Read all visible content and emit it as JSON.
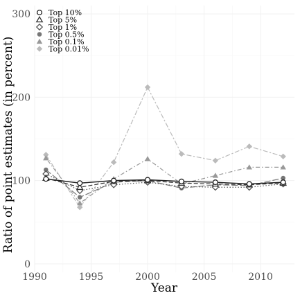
{
  "chart_data": {
    "type": "line",
    "title": "",
    "xlabel": "Year",
    "ylabel": "Ratio of point estimates (in percent)",
    "xlim": [
      1990,
      2013
    ],
    "ylim": [
      -10,
      310
    ],
    "x_ticks": [
      1990,
      1995,
      2000,
      2005,
      2010
    ],
    "y_ticks": [
      0,
      100,
      200,
      300
    ],
    "x": [
      1991,
      1994,
      1997,
      2000,
      2003,
      2006,
      2009,
      2012
    ],
    "grid": true,
    "legend_position": "top-left",
    "series": [
      {
        "name": "Top 10%",
        "values": [
          102,
          97,
          100,
          101,
          99,
          98,
          96,
          98
        ],
        "marker": "circle-open",
        "color": "#222222",
        "dash": "solid"
      },
      {
        "name": "Top 5%",
        "values": [
          103,
          92,
          99,
          100,
          97,
          96,
          95,
          97
        ],
        "marker": "triangle-open",
        "color": "#333333",
        "dash": "dashed"
      },
      {
        "name": "Top 1%",
        "values": [
          108,
          88,
          95,
          98,
          93,
          92,
          92,
          96
        ],
        "marker": "diamond-open",
        "color": "#555555",
        "dash": "dotted"
      },
      {
        "name": "Top 0.5%",
        "values": [
          113,
          80,
          98,
          100,
          91,
          95,
          94,
          103
        ],
        "marker": "circle-filled",
        "color": "#777777",
        "dash": "longdash"
      },
      {
        "name": "Top 0.1%",
        "values": [
          127,
          73,
          102,
          126,
          96,
          106,
          116,
          116
        ],
        "marker": "triangle-filled",
        "color": "#999999",
        "dash": "dotdash"
      },
      {
        "name": "Top 0.01%",
        "values": [
          131,
          68,
          122,
          212,
          132,
          124,
          141,
          129
        ],
        "marker": "diamond-filled",
        "color": "#bbbbbb",
        "dash": "twodash"
      }
    ]
  }
}
